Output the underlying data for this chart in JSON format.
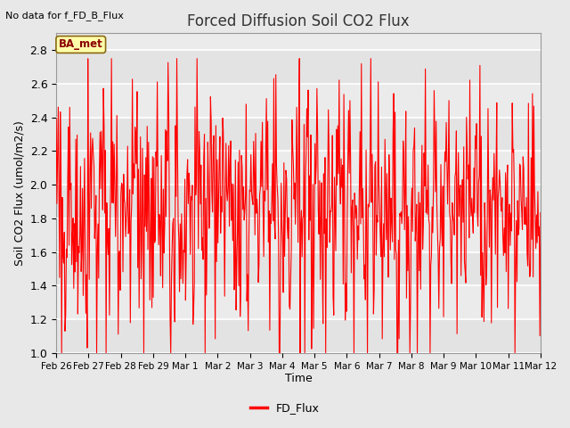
{
  "title": "Forced Diffusion Soil CO2 Flux",
  "xlabel": "Time",
  "ylabel": "Soil CO2 Flux (umol/m2/s)",
  "ylim": [
    1.0,
    2.9
  ],
  "yticks": [
    1.0,
    1.2,
    1.4,
    1.6,
    1.8,
    2.0,
    2.2,
    2.4,
    2.6,
    2.8
  ],
  "line_color": "#FF0000",
  "line_width": 0.8,
  "bg_color": "#E8E8E8",
  "plot_bg_color": "#EBEBEB",
  "grid_color": "#FFFFFF",
  "no_data_label": "No data for f_FD_B_Flux",
  "legend_label": "FD_Flux",
  "ba_met_label": "BA_met",
  "x_tick_labels": [
    "Feb 26",
    "Feb 27",
    "Feb 28",
    "Feb 29",
    "Mar 1",
    "Mar 2",
    "Mar 3",
    "Mar 4",
    "Mar 5",
    "Mar 6",
    "Mar 7",
    "Mar 8",
    "Mar 9",
    "Mar 10",
    "Mar 11",
    "Mar 12"
  ],
  "n_days": 15,
  "n_per_day": 48,
  "seed": 42
}
